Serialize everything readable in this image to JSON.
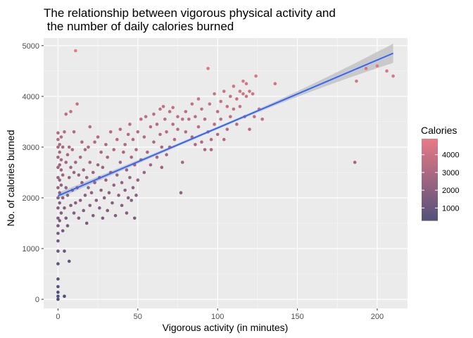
{
  "chart_data": {
    "type": "scatter",
    "title_lines": [
      "The relationship between vigorous physical activity and",
      " the number of daily calories burned"
    ],
    "xlabel": "Vigorous activity (in minutes)",
    "ylabel": "No. of calories burned",
    "xlim": [
      -9,
      219
    ],
    "ylim": [
      -180,
      5150
    ],
    "x_ticks": [
      0,
      50,
      100,
      150,
      200
    ],
    "y_ticks": [
      0,
      1000,
      2000,
      3000,
      4000,
      5000
    ],
    "grid": true,
    "legend": {
      "title": "Calories",
      "position": "right",
      "labels": [
        "4000",
        "3000",
        "2000",
        "1000"
      ],
      "values": [
        4000,
        3000,
        2000,
        1000
      ]
    },
    "color_scale": {
      "low": "#4a4e7a",
      "high": "#e87a86",
      "min": 0,
      "max": 4900
    },
    "trend_line": {
      "method": "linear",
      "x_start": 0,
      "y_start": 2040,
      "x_end": 210,
      "y_end": 4850,
      "color": "#3366ff",
      "band_color": "#bdbdbd",
      "band_halfwidth_start": 60,
      "band_halfwidth_mid": 25,
      "band_halfwidth_end": 190
    },
    "points_note": "Notable points read from chart",
    "points": [
      [
        0,
        0
      ],
      [
        0,
        60
      ],
      [
        0,
        140
      ],
      [
        0,
        250
      ],
      [
        0,
        400
      ],
      [
        0,
        700
      ],
      [
        0,
        950
      ],
      [
        0,
        1150
      ],
      [
        0,
        1300
      ],
      [
        0,
        1450
      ],
      [
        0,
        1600
      ],
      [
        0,
        1800
      ],
      [
        0,
        2000
      ],
      [
        0,
        2200
      ],
      [
        0,
        2400
      ],
      [
        0,
        2600
      ],
      [
        0,
        2800
      ],
      [
        0,
        3000
      ],
      [
        0,
        3150
      ],
      [
        0,
        3280
      ],
      [
        1,
        1550
      ],
      [
        1,
        1900
      ],
      [
        1,
        2100
      ],
      [
        1,
        2350
      ],
      [
        1,
        2650
      ],
      [
        1,
        2900
      ],
      [
        1,
        3050
      ],
      [
        2,
        1700
      ],
      [
        2,
        2250
      ],
      [
        2,
        2550
      ],
      [
        2,
        2750
      ],
      [
        2,
        3200
      ],
      [
        3,
        1350
      ],
      [
        3,
        2000
      ],
      [
        3,
        2450
      ],
      [
        3,
        3000
      ],
      [
        4,
        60
      ],
      [
        4,
        950
      ],
      [
        4,
        1800
      ],
      [
        4,
        3300
      ],
      [
        5,
        1600
      ],
      [
        5,
        2200
      ],
      [
        5,
        2700
      ],
      [
        5,
        3650
      ],
      [
        6,
        1450
      ],
      [
        6,
        2050
      ],
      [
        6,
        2850
      ],
      [
        7,
        750
      ],
      [
        7,
        2400
      ],
      [
        7,
        3000
      ],
      [
        8,
        1850
      ],
      [
        8,
        2600
      ],
      [
        8,
        3700
      ],
      [
        9,
        2150
      ],
      [
        9,
        2950
      ],
      [
        10,
        1700
      ],
      [
        10,
        2500
      ],
      [
        10,
        3300
      ],
      [
        11,
        4900
      ],
      [
        11,
        1900
      ],
      [
        11,
        2700
      ],
      [
        12,
        2200
      ],
      [
        12,
        3850
      ],
      [
        13,
        1600
      ],
      [
        13,
        2450
      ],
      [
        14,
        1950
      ],
      [
        14,
        2800
      ],
      [
        15,
        2300
      ],
      [
        15,
        3100
      ],
      [
        16,
        1750
      ],
      [
        16,
        2550
      ],
      [
        17,
        2050
      ],
      [
        17,
        2950
      ],
      [
        18,
        1500
      ],
      [
        18,
        2400
      ],
      [
        19,
        2200
      ],
      [
        19,
        3000
      ],
      [
        20,
        1850
      ],
      [
        20,
        2700
      ],
      [
        20,
        3400
      ],
      [
        21,
        2100
      ],
      [
        22,
        1650
      ],
      [
        22,
        2500
      ],
      [
        23,
        2300
      ],
      [
        23,
        3100
      ],
      [
        24,
        1950
      ],
      [
        25,
        2650
      ],
      [
        25,
        3200
      ],
      [
        26,
        1800
      ],
      [
        26,
        2400
      ],
      [
        27,
        2150
      ],
      [
        27,
        2900
      ],
      [
        28,
        1600
      ],
      [
        28,
        2600
      ],
      [
        29,
        2000
      ],
      [
        30,
        2350
      ],
      [
        30,
        3050
      ],
      [
        31,
        1750
      ],
      [
        31,
        2800
      ],
      [
        32,
        2100
      ],
      [
        33,
        2500
      ],
      [
        33,
        3300
      ],
      [
        34,
        1900
      ],
      [
        35,
        2250
      ],
      [
        35,
        2950
      ],
      [
        36,
        1650
      ],
      [
        37,
        2450
      ],
      [
        37,
        3150
      ],
      [
        38,
        2050
      ],
      [
        39,
        2700
      ],
      [
        39,
        3350
      ],
      [
        40,
        1850
      ],
      [
        40,
        2300
      ],
      [
        41,
        2900
      ],
      [
        42,
        2150
      ],
      [
        42,
        3050
      ],
      [
        43,
        1700
      ],
      [
        43,
        2550
      ],
      [
        44,
        2000
      ],
      [
        44,
        3250
      ],
      [
        45,
        2400
      ],
      [
        45,
        3450
      ],
      [
        46,
        1950
      ],
      [
        46,
        2800
      ],
      [
        47,
        2200
      ],
      [
        47,
        3150
      ],
      [
        48,
        1600
      ],
      [
        48,
        2650
      ],
      [
        49,
        2050
      ],
      [
        49,
        2950
      ],
      [
        50,
        2350
      ],
      [
        50,
        3300
      ],
      [
        52,
        2750
      ],
      [
        52,
        3550
      ],
      [
        54,
        2500
      ],
      [
        54,
        3200
      ],
      [
        55,
        3600
      ],
      [
        56,
        2900
      ],
      [
        58,
        2650
      ],
      [
        58,
        3400
      ],
      [
        60,
        3100
      ],
      [
        60,
        3650
      ],
      [
        62,
        2800
      ],
      [
        62,
        3450
      ],
      [
        64,
        3250
      ],
      [
        64,
        3750
      ],
      [
        65,
        2600
      ],
      [
        65,
        3000
      ],
      [
        66,
        3800
      ],
      [
        67,
        3550
      ],
      [
        68,
        3300
      ],
      [
        68,
        2850
      ],
      [
        70,
        3700
      ],
      [
        70,
        3000
      ],
      [
        72,
        3450
      ],
      [
        72,
        3780
      ],
      [
        73,
        3150
      ],
      [
        75,
        3600
      ],
      [
        75,
        3350
      ],
      [
        77,
        2100
      ],
      [
        78,
        3550
      ],
      [
        78,
        2700
      ],
      [
        80,
        3300
      ],
      [
        80,
        3700
      ],
      [
        82,
        3550
      ],
      [
        84,
        3850
      ],
      [
        84,
        3200
      ],
      [
        86,
        3600
      ],
      [
        86,
        3050
      ],
      [
        88,
        3950
      ],
      [
        88,
        3400
      ],
      [
        90,
        3750
      ],
      [
        90,
        3100
      ],
      [
        92,
        3550
      ],
      [
        92,
        2950
      ],
      [
        94,
        4550
      ],
      [
        94,
        3300
      ],
      [
        95,
        3850
      ],
      [
        96,
        3150
      ],
      [
        96,
        2950
      ],
      [
        98,
        4050
      ],
      [
        98,
        3450
      ],
      [
        100,
        3700
      ],
      [
        100,
        3250
      ],
      [
        102,
        3900
      ],
      [
        102,
        3550
      ],
      [
        104,
        4100
      ],
      [
        104,
        3150
      ],
      [
        106,
        3800
      ],
      [
        106,
        3350
      ],
      [
        108,
        4000
      ],
      [
        108,
        3600
      ],
      [
        110,
        4200
      ],
      [
        110,
        3750
      ],
      [
        112,
        3950
      ],
      [
        112,
        3450
      ],
      [
        114,
        4100
      ],
      [
        114,
        3800
      ],
      [
        116,
        4050
      ],
      [
        116,
        4300
      ],
      [
        117,
        3600
      ],
      [
        118,
        4000
      ],
      [
        118,
        4250
      ],
      [
        120,
        4100
      ],
      [
        120,
        3350
      ],
      [
        122,
        4050
      ],
      [
        123,
        3600
      ],
      [
        124,
        4400
      ],
      [
        126,
        3750
      ],
      [
        128,
        3550
      ],
      [
        136,
        4250
      ],
      [
        186,
        2700
      ],
      [
        187,
        4300
      ],
      [
        193,
        4550
      ],
      [
        200,
        4600
      ],
      [
        206,
        4500
      ],
      [
        210,
        4400
      ]
    ]
  }
}
